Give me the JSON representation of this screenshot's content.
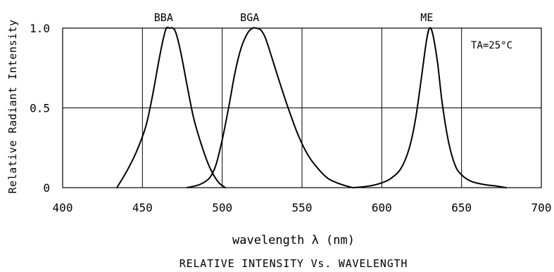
{
  "chart_data": {
    "type": "line",
    "title": "RELATIVE INTENSITY Vs. WAVELENGTH",
    "xlabel": "wavelength λ (nm)",
    "ylabel": "Relative Radiant Intensity",
    "xlim": [
      400,
      700
    ],
    "ylim": [
      0,
      1.0
    ],
    "x_ticks": [
      "400",
      "450",
      "500",
      "550",
      "600",
      "650",
      "700"
    ],
    "y_ticks": [
      "0",
      "0.5",
      "1.0"
    ],
    "x_tick_values": [
      400,
      450,
      500,
      550,
      600,
      650,
      700
    ],
    "y_tick_values": [
      0,
      0.5,
      1.0
    ],
    "grid": true,
    "annotation": "TA=25°C",
    "series": [
      {
        "name": "BBA",
        "x": [
          434,
          440,
          446,
          452,
          456,
          460,
          463,
          465,
          467,
          469,
          471,
          474,
          478,
          482,
          486,
          490,
          494,
          498,
          502
        ],
        "y": [
          0.0,
          0.1,
          0.22,
          0.38,
          0.56,
          0.78,
          0.93,
          1.0,
          1.0,
          1.0,
          0.97,
          0.85,
          0.64,
          0.44,
          0.3,
          0.18,
          0.09,
          0.03,
          0.0
        ]
      },
      {
        "name": "BGA",
        "x": [
          478,
          486,
          492,
          496,
          500,
          504,
          508,
          512,
          516,
          519,
          521,
          524,
          527,
          531,
          536,
          542,
          548,
          554,
          560,
          566,
          572,
          578,
          582
        ],
        "y": [
          0.0,
          0.02,
          0.06,
          0.14,
          0.3,
          0.5,
          0.72,
          0.88,
          0.97,
          1.0,
          1.0,
          0.99,
          0.94,
          0.82,
          0.66,
          0.48,
          0.32,
          0.2,
          0.12,
          0.06,
          0.03,
          0.01,
          0.0
        ]
      },
      {
        "name": "ME",
        "x": [
          582,
          592,
          600,
          606,
          612,
          617,
          621,
          625,
          628,
          630,
          632,
          635,
          638,
          642,
          646,
          650,
          656,
          664,
          672,
          678
        ],
        "y": [
          0.0,
          0.01,
          0.03,
          0.06,
          0.12,
          0.24,
          0.42,
          0.7,
          0.92,
          1.0,
          0.96,
          0.78,
          0.52,
          0.28,
          0.14,
          0.08,
          0.04,
          0.02,
          0.01,
          0.0
        ]
      }
    ]
  }
}
